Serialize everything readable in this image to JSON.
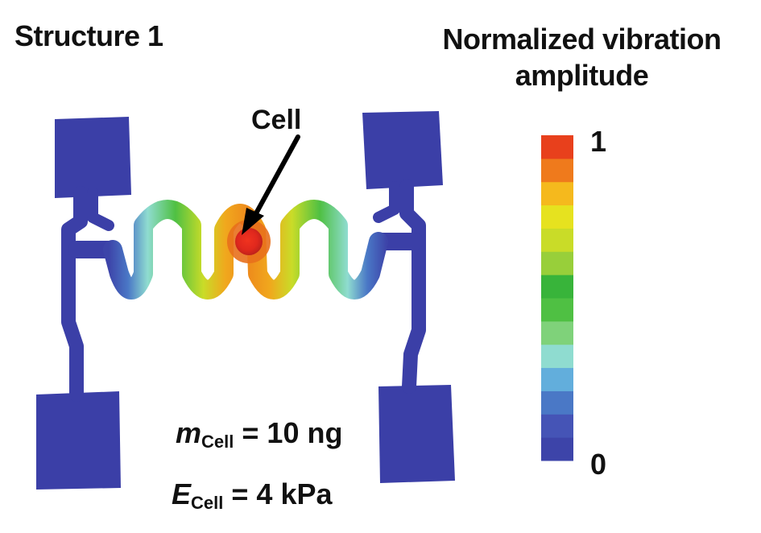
{
  "title": "Structure 1",
  "legend": {
    "title_line1": "Normalized vibration",
    "title_line2": "amplitude",
    "max_label": "1",
    "min_label": "0",
    "colors": [
      "#3d44a9",
      "#4554b6",
      "#4a78c6",
      "#62aedc",
      "#8fdcd0",
      "#7fd27a",
      "#4fc043",
      "#38b43a",
      "#98cf3a",
      "#c9dc28",
      "#e6e21f",
      "#f5b91d",
      "#ef7a1c",
      "#e8401c"
    ]
  },
  "annotation": {
    "cell_label": "Cell"
  },
  "params": {
    "mass": {
      "symbol": "m",
      "subscript": "Cell",
      "value": "= 10 ng"
    },
    "modulus": {
      "symbol": "E",
      "subscript": "Cell",
      "value": "= 4 kPa"
    }
  },
  "colors": {
    "structure_base": "#3b3fa7",
    "cell_core": "#e42b22",
    "arrow": "#000000"
  }
}
